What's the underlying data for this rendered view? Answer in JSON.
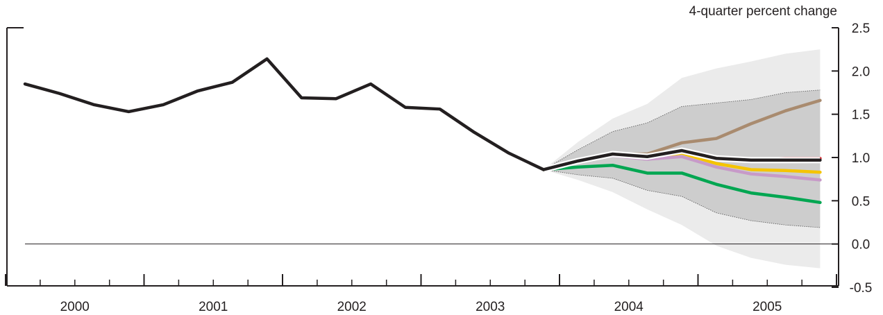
{
  "chart_data": {
    "type": "line",
    "title": "",
    "unit_label": "4-quarter percent change",
    "xlabel": "",
    "ylabel": "",
    "ylim": [
      -0.5,
      2.5
    ],
    "y_ticks": [
      "2.5",
      "2.0",
      "1.5",
      "1.0",
      "0.5",
      "0.0",
      "-0.5"
    ],
    "y_tick_values": [
      2.5,
      2.0,
      1.5,
      1.0,
      0.5,
      0.0,
      -0.5
    ],
    "x_year_labels": [
      "2000",
      "2001",
      "2002",
      "2003",
      "2004",
      "2005"
    ],
    "x_quarters": [
      "2000Q1",
      "2000Q2",
      "2000Q3",
      "2000Q4",
      "2001Q1",
      "2001Q2",
      "2001Q3",
      "2001Q4",
      "2002Q1",
      "2002Q2",
      "2002Q3",
      "2002Q4",
      "2003Q1",
      "2003Q2",
      "2003Q3",
      "2003Q4",
      "2004Q1",
      "2004Q2",
      "2004Q3",
      "2004Q4",
      "2005Q1",
      "2005Q2",
      "2005Q3",
      "2005Q4"
    ],
    "grid": false,
    "zero_line": true,
    "historical": {
      "color": "#231f20",
      "values": [
        1.85,
        1.74,
        1.61,
        1.53,
        1.61,
        1.77,
        1.87,
        2.14,
        1.69,
        1.68,
        1.85,
        1.58,
        1.56,
        1.29,
        1.05,
        0.86
      ]
    },
    "fan_bands": [
      {
        "level": "outer",
        "color": "#ebebeb",
        "upper": [
          0.86,
          1.18,
          1.45,
          1.62,
          1.92,
          2.03,
          2.11,
          2.2,
          2.25
        ],
        "lower": [
          0.86,
          0.74,
          0.6,
          0.4,
          0.22,
          -0.02,
          -0.16,
          -0.24,
          -0.28
        ]
      },
      {
        "level": "inner",
        "color": "#cdcdcd",
        "upper": [
          0.86,
          1.09,
          1.3,
          1.4,
          1.59,
          1.63,
          1.67,
          1.75,
          1.78
        ],
        "lower": [
          0.86,
          0.8,
          0.76,
          0.62,
          0.55,
          0.36,
          0.27,
          0.22,
          0.19
        ]
      }
    ],
    "series": [
      {
        "color": "#a98b6f",
        "values": [
          0.86,
          0.96,
          1.04,
          1.04,
          1.17,
          1.22,
          1.39,
          1.54,
          1.66
        ]
      },
      {
        "color": "#d6232a",
        "values": [
          0.86,
          0.96,
          1.04,
          1.02,
          1.08,
          1.0,
          0.97,
          0.99,
          0.99
        ]
      },
      {
        "color": "#f5c400",
        "values": [
          0.86,
          0.96,
          1.03,
          1.0,
          1.05,
          0.93,
          0.86,
          0.85,
          0.83
        ]
      },
      {
        "color": "#c79ac8",
        "values": [
          0.86,
          0.96,
          1.02,
          0.98,
          1.01,
          0.89,
          0.81,
          0.78,
          0.74
        ]
      },
      {
        "color": "#00a651",
        "values": [
          0.86,
          0.89,
          0.91,
          0.82,
          0.82,
          0.69,
          0.59,
          0.54,
          0.48
        ]
      },
      {
        "color": "#231f20",
        "values": [
          0.86,
          0.96,
          1.04,
          1.01,
          1.08,
          0.99,
          0.97,
          0.97,
          0.97
        ]
      }
    ],
    "forecast_start_index": 15
  }
}
